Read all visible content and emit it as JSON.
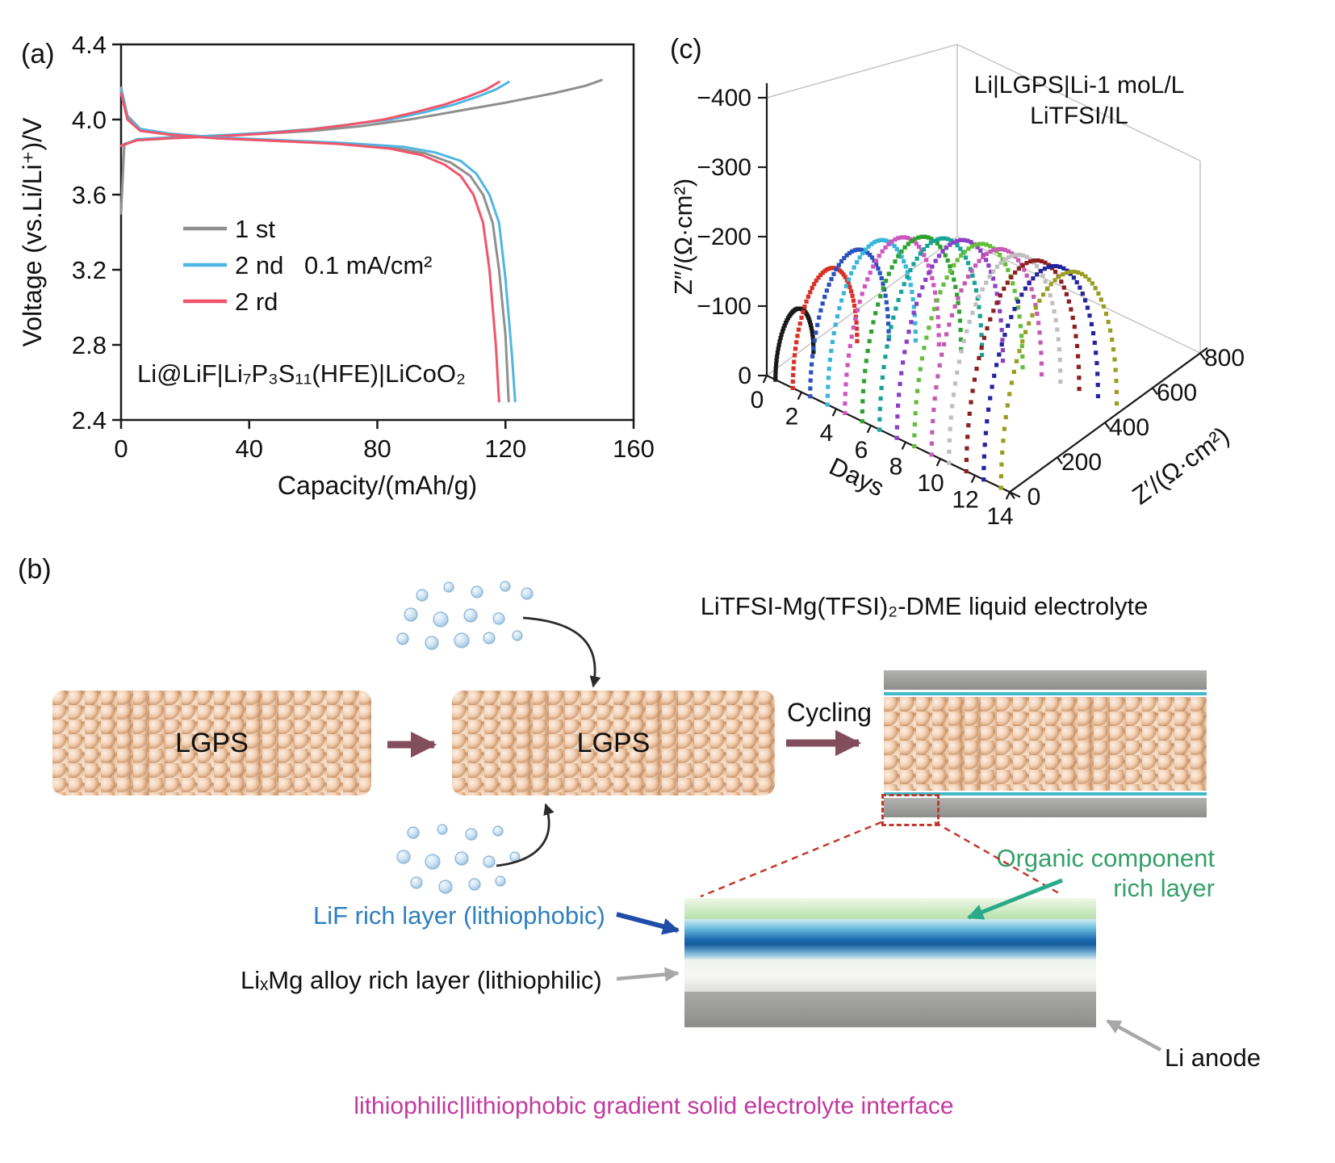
{
  "figure": {
    "panel_a_tag": "(a)",
    "panel_b_tag": "(b)",
    "panel_c_tag": "(c)"
  },
  "chart_data": [
    {
      "type": "line",
      "xlabel": "Capacity/(mAh/g)",
      "ylabel": "Voltage (vs.Li/Li⁺)/V",
      "xlim": [
        0,
        160
      ],
      "ylim": [
        2.4,
        4.4
      ],
      "xticks": [
        0,
        40,
        80,
        120,
        160
      ],
      "yticks": [
        2.4,
        2.8,
        3.2,
        3.6,
        4.0,
        4.4
      ],
      "legend": [
        {
          "name": "1 st",
          "color": "#8f8f8f"
        },
        {
          "name": "2 nd",
          "color": "#4fb6e3"
        },
        {
          "name": "2 rd",
          "color": "#f0556a"
        }
      ],
      "annotations": [
        "0.1 mA/cm²",
        "Li@LiF|Li₇P₃S₁₁(HFE)|LiCoO₂"
      ],
      "series": [
        {
          "name": "1st charge",
          "color": "#8f8f8f",
          "points": [
            [
              0,
              3.5
            ],
            [
              1,
              3.87
            ],
            [
              5,
              3.89
            ],
            [
              15,
              3.9
            ],
            [
              30,
              3.915
            ],
            [
              45,
              3.925
            ],
            [
              60,
              3.94
            ],
            [
              75,
              3.965
            ],
            [
              90,
              4.0
            ],
            [
              105,
              4.045
            ],
            [
              120,
              4.09
            ],
            [
              135,
              4.14
            ],
            [
              145,
              4.18
            ],
            [
              150,
              4.21
            ]
          ]
        },
        {
          "name": "2nd charge",
          "color": "#4fb6e3",
          "points": [
            [
              0,
              3.86
            ],
            [
              5,
              3.895
            ],
            [
              15,
              3.905
            ],
            [
              30,
              3.915
            ],
            [
              45,
              3.93
            ],
            [
              60,
              3.95
            ],
            [
              72,
              3.975
            ],
            [
              84,
              4.0
            ],
            [
              95,
              4.04
            ],
            [
              104,
              4.08
            ],
            [
              111,
              4.12
            ],
            [
              117,
              4.16
            ],
            [
              121,
              4.2
            ]
          ]
        },
        {
          "name": "2rd charge",
          "color": "#f0556a",
          "points": [
            [
              0,
              3.86
            ],
            [
              5,
              3.89
            ],
            [
              15,
              3.9
            ],
            [
              30,
              3.91
            ],
            [
              45,
              3.925
            ],
            [
              58,
              3.945
            ],
            [
              70,
              3.97
            ],
            [
              82,
              4.0
            ],
            [
              92,
              4.04
            ],
            [
              101,
              4.08
            ],
            [
              108,
              4.12
            ],
            [
              114,
              4.16
            ],
            [
              118,
              4.2
            ]
          ]
        },
        {
          "name": "1st discharge",
          "color": "#8f8f8f",
          "points": [
            [
              0,
              4.17
            ],
            [
              2,
              4.02
            ],
            [
              6,
              3.95
            ],
            [
              15,
              3.92
            ],
            [
              30,
              3.9
            ],
            [
              50,
              3.885
            ],
            [
              70,
              3.87
            ],
            [
              85,
              3.85
            ],
            [
              95,
              3.82
            ],
            [
              103,
              3.77
            ],
            [
              109,
              3.7
            ],
            [
              113,
              3.6
            ],
            [
              116,
              3.45
            ],
            [
              118,
              3.2
            ],
            [
              120,
              2.85
            ],
            [
              121,
              2.5
            ]
          ]
        },
        {
          "name": "2nd discharge",
          "color": "#4fb6e3",
          "points": [
            [
              0,
              4.16
            ],
            [
              2,
              4.01
            ],
            [
              6,
              3.95
            ],
            [
              15,
              3.925
            ],
            [
              30,
              3.905
            ],
            [
              50,
              3.89
            ],
            [
              70,
              3.875
            ],
            [
              88,
              3.855
            ],
            [
              98,
              3.825
            ],
            [
              106,
              3.78
            ],
            [
              111,
              3.71
            ],
            [
              115,
              3.6
            ],
            [
              118,
              3.45
            ],
            [
              120,
              3.15
            ],
            [
              122,
              2.75
            ],
            [
              123,
              2.5
            ]
          ]
        },
        {
          "name": "2rd discharge",
          "color": "#f0556a",
          "points": [
            [
              0,
              4.14
            ],
            [
              2,
              4.0
            ],
            [
              6,
              3.94
            ],
            [
              15,
              3.92
            ],
            [
              30,
              3.9
            ],
            [
              50,
              3.885
            ],
            [
              68,
              3.87
            ],
            [
              84,
              3.845
            ],
            [
              94,
              3.81
            ],
            [
              101,
              3.76
            ],
            [
              106,
              3.7
            ],
            [
              110,
              3.6
            ],
            [
              113,
              3.45
            ],
            [
              115,
              3.2
            ],
            [
              117,
              2.8
            ],
            [
              118,
              2.5
            ]
          ]
        }
      ]
    },
    {
      "type": "scatter",
      "projection": "3d-nyquist-vs-days",
      "annotation_lines": [
        "Li|LGPS|Li-1 moL/L",
        "LiTFSI/IL"
      ],
      "xlabel": "Days",
      "ylabel": "Z′/(Ω·cm²)",
      "zlabel": "Z″/(Ω·cm²)",
      "days_ticks": [
        0,
        2,
        4,
        6,
        8,
        10,
        12,
        14
      ],
      "zp_ticks": [
        0,
        200,
        400,
        600,
        800
      ],
      "zpp_ticks": [
        0,
        -100,
        -200,
        -300,
        -400
      ],
      "xlim_days": [
        0,
        14
      ],
      "ylim_zp": [
        0,
        800
      ],
      "zlim_zpp": [
        0,
        -400
      ],
      "series": [
        {
          "day": 0.5,
          "diameter": 160,
          "color": "#1a1a1a"
        },
        {
          "day": 1.5,
          "diameter": 270,
          "color": "#d93025"
        },
        {
          "day": 2.5,
          "diameter": 330,
          "color": "#2a52be"
        },
        {
          "day": 3.5,
          "diameter": 370,
          "color": "#37b6d9"
        },
        {
          "day": 4.5,
          "diameter": 395,
          "color": "#cf56c0"
        },
        {
          "day": 5.5,
          "diameter": 415,
          "color": "#2ea12e"
        },
        {
          "day": 6.5,
          "diameter": 430,
          "color": "#17a398"
        },
        {
          "day": 7.5,
          "diameter": 445,
          "color": "#8a3fc6"
        },
        {
          "day": 8.5,
          "diameter": 455,
          "color": "#66bd3c"
        },
        {
          "day": 9.5,
          "diameter": 462,
          "color": "#c45ab4"
        },
        {
          "day": 10.5,
          "diameter": 468,
          "color": "#bfbfbf"
        },
        {
          "day": 11.5,
          "diameter": 474,
          "color": "#8e1f1f"
        },
        {
          "day": 12.5,
          "diameter": 480,
          "color": "#24249e"
        },
        {
          "day": 13.5,
          "diameter": 486,
          "color": "#9a9e20"
        }
      ]
    }
  ],
  "diagram": {
    "electrolyte_label": "LiTFSI-Mg(TFSI)₂-DME liquid electrolyte",
    "lgps_left": "LGPS",
    "lgps_middle": "LGPS",
    "cycling_label": "Cycling",
    "organic_layer_label_line1": "Organic component",
    "organic_layer_label_line2": "rich layer",
    "lif_layer_label": "LiF rich layer (lithiophobic)",
    "limg_layer_label": "LiₓMg alloy rich layer (lithiophilic)",
    "li_anode_label": "Li anode",
    "caption": "lithiophilic|lithiophobic gradient solid electrolyte interface",
    "colors": {
      "organic_text": "#35a06a",
      "organic_arrow": "#2aaa8a",
      "lif_text": "#2f7fc1",
      "lif_arrow": "#1f4da8",
      "caption_text": "#c2399f",
      "dashed_red": "#c0392b",
      "maroon_arrow": "#824e5e",
      "gray_arrow": "#a8a8a8"
    }
  }
}
